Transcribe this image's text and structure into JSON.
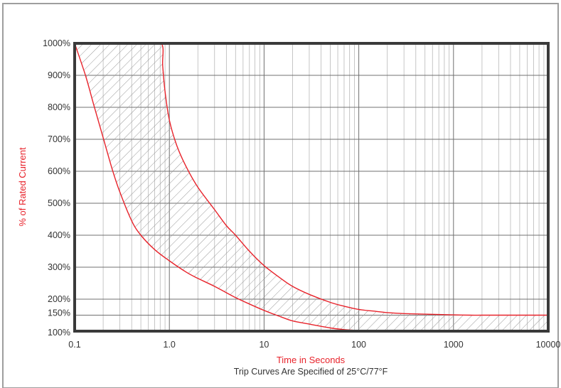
{
  "chart_data": {
    "type": "area",
    "title": "",
    "caption": "Trip Curves Are Specified of 25°C/77°F",
    "xlabel": "Time in Seconds",
    "ylabel": "% of Rated Current",
    "x_scale": "log",
    "xlim": [
      0.1,
      10000
    ],
    "ylim": [
      100,
      1000
    ],
    "x_ticks": [
      0.1,
      1,
      10,
      100,
      1000,
      10000
    ],
    "x_tick_labels": [
      "0.1",
      "1.0",
      "10",
      "100",
      "1000",
      "10000"
    ],
    "y_ticks": [
      100,
      150,
      200,
      300,
      400,
      500,
      600,
      700,
      800,
      900,
      1000
    ],
    "y_tick_labels": [
      "100%",
      "150%",
      "200%",
      "300%",
      "400%",
      "500%",
      "600%",
      "700%",
      "800%",
      "900%",
      "1000%"
    ],
    "grid": true,
    "band_fill": "hatched",
    "series": [
      {
        "x": [
          0.1,
          0.13,
          0.16,
          0.2,
          0.25,
          0.3,
          0.4,
          0.5,
          0.7,
          1,
          1.5,
          2,
          3,
          5,
          7,
          10,
          15,
          20,
          30,
          50,
          70,
          100,
          150,
          300,
          1000,
          10000
        ],
        "y": [
          1000,
          900,
          805,
          705,
          605,
          535,
          445,
          400,
          355,
          320,
          285,
          265,
          240,
          205,
          185,
          165,
          145,
          132,
          122,
          110,
          105,
          102,
          100,
          100,
          100,
          100
        ]
      },
      {
        "x": [
          0.1,
          0.5,
          0.82,
          0.85,
          0.9,
          1,
          1.2,
          1.5,
          2,
          3,
          4,
          5,
          7,
          10,
          15,
          20,
          30,
          50,
          70,
          100,
          150,
          200,
          300,
          500,
          700,
          1000,
          1500,
          2000,
          3000,
          5000,
          10000
        ],
        "y": [
          1000,
          1000,
          1000,
          930,
          850,
          760,
          680,
          615,
          550,
          480,
          430,
          400,
          350,
          305,
          265,
          240,
          215,
          190,
          178,
          168,
          162,
          158,
          155,
          153,
          152,
          151,
          150,
          150,
          150,
          150,
          150
        ]
      }
    ],
    "colors": {
      "curve": "#e8232b",
      "axis_label": "#e8232b",
      "frame": "#3a3a3a",
      "grid_major": "#707070",
      "grid_minor": "#b8b8b8",
      "hatch": "#9a9a9a"
    }
  }
}
